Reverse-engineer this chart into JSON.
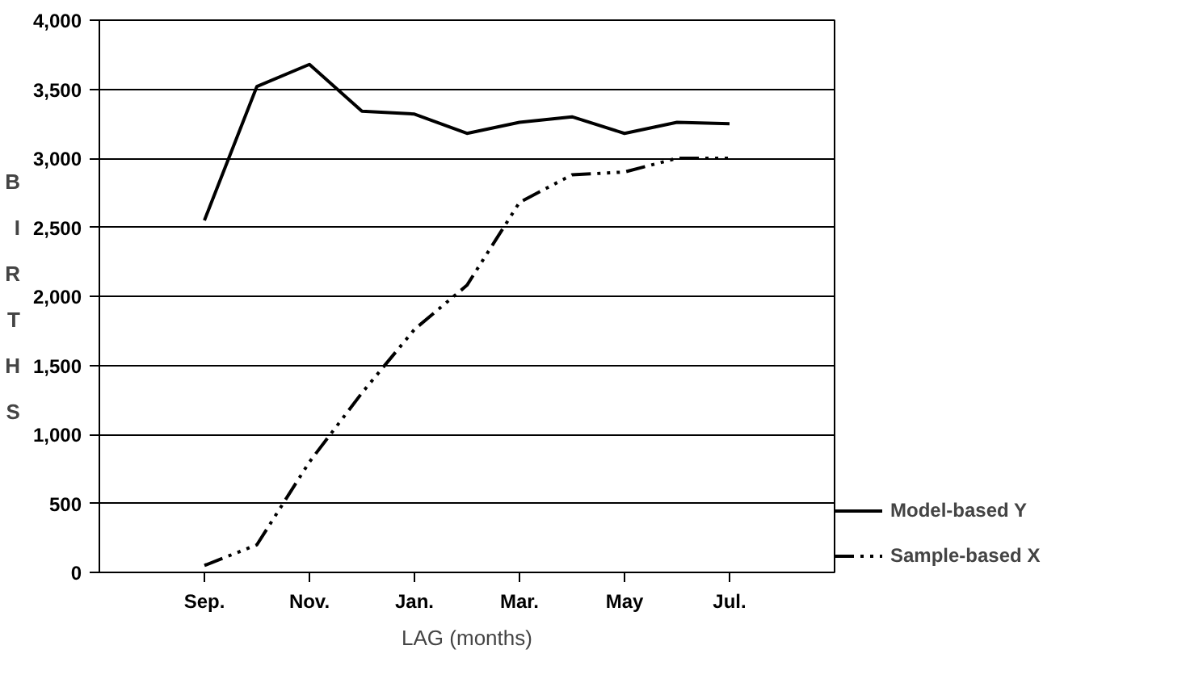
{
  "chart_data": {
    "type": "line",
    "xlabel": "LAG (months)",
    "ylabel": "BIRTHS",
    "categories": [
      "Sep.",
      null,
      "Nov.",
      null,
      "Jan.",
      null,
      "Mar.",
      null,
      "May",
      null,
      "Jul."
    ],
    "series": [
      {
        "name": "Model-based Y",
        "color": "#000000",
        "line_style": "solid",
        "values": [
          2550,
          3520,
          3680,
          3340,
          3320,
          3180,
          3260,
          3300,
          3180,
          3260,
          3250
        ]
      },
      {
        "name": "Sample-based X",
        "color": "#000000",
        "line_style": "dashed",
        "values": [
          50,
          200,
          800,
          1300,
          1760,
          2080,
          2680,
          2880,
          2900,
          3000,
          3000
        ]
      }
    ],
    "ylim": [
      0,
      4000
    ],
    "yticks": [
      {
        "value": 0,
        "label": "0"
      },
      {
        "value": 500,
        "label": "500"
      },
      {
        "value": 1000,
        "label": "1,000"
      },
      {
        "value": 1500,
        "label": "1,500"
      },
      {
        "value": 2000,
        "label": "2,000"
      },
      {
        "value": 2500,
        "label": "2,500"
      },
      {
        "value": 3000,
        "label": "3,000"
      },
      {
        "value": 3500,
        "label": "3,500"
      },
      {
        "value": 4000,
        "label": "4,000"
      }
    ],
    "grid": "y",
    "legend": "bottom right",
    "marker": "none"
  }
}
